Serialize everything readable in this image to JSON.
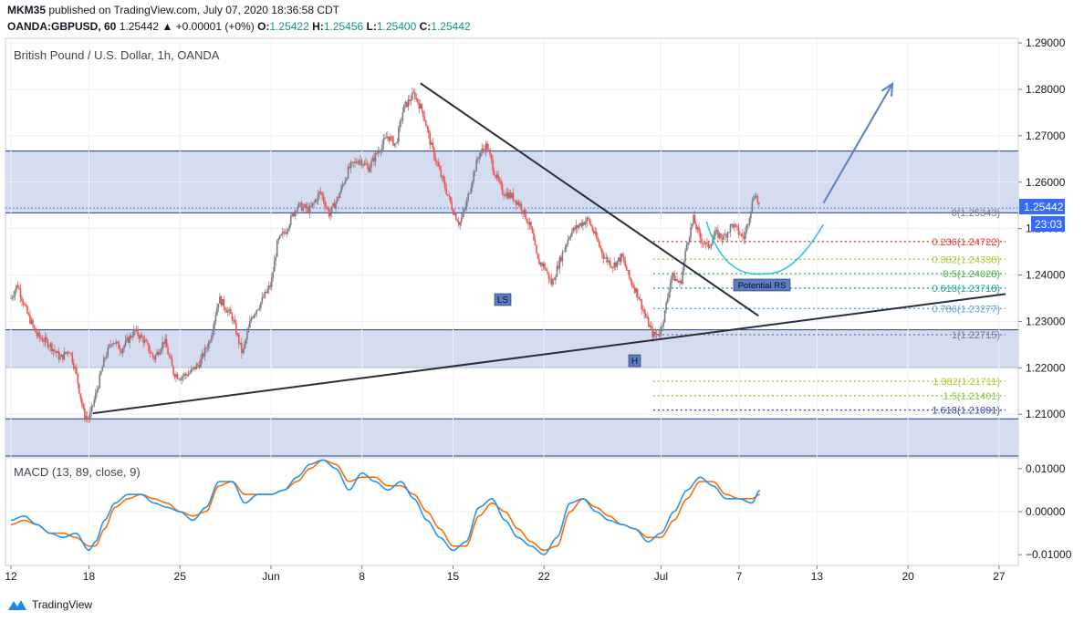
{
  "header": {
    "line1_user": "MKM35",
    "line1_rest": "published on TradingView.com, July 07, 2020 18:36:58 CDT",
    "symbol": "OANDA:GBPUSD, 60",
    "last": "1.25442",
    "change": "▲ +0.00001 (+0%)",
    "o_label": "O:",
    "o": "1.25422",
    "h_label": "H:",
    "h": "1.25456",
    "l_label": "L:",
    "l": "1.25400",
    "c_label": "C:",
    "c": "1.25442"
  },
  "colors": {
    "zone_fill": "#d3ddef",
    "zone_line": "#1d3c8c",
    "candle_up": "#787b86",
    "candle_down": "#ef5350",
    "macd_line": "#2196f3",
    "signal_line": "#ff6d00",
    "trendline": "#2a2e39",
    "arrow": "#5b7fc7",
    "cup": "#26c6da"
  },
  "chart_data": {
    "type": "candlestick",
    "title": "British Pound / U.S. Dollar, 1h, OANDA",
    "price_axis": {
      "ylim": [
        1.201,
        1.291
      ],
      "ticks": [
        "1.29000",
        "1.28000",
        "1.27000",
        "1.26000",
        "1.25000",
        "1.24000",
        "1.23000",
        "1.22000",
        "1.21000"
      ],
      "tick_values": [
        1.29,
        1.28,
        1.27,
        1.26,
        1.25,
        1.24,
        1.23,
        1.22,
        1.21
      ]
    },
    "time_axis": {
      "labels": [
        "12",
        "18",
        "25",
        "Jun",
        "8",
        "15",
        "22",
        "Jul",
        "7",
        "13",
        "20",
        "27"
      ],
      "day_index": [
        0,
        6,
        13,
        20,
        27,
        34,
        41,
        50,
        56,
        62,
        69,
        76
      ],
      "day_range": [
        0,
        76.5
      ]
    },
    "last_price_label": "1.25442",
    "countdown_label": "23:03",
    "support_resistance_zones": [
      {
        "from": 1.2534,
        "to": 1.2667
      },
      {
        "from": 1.22,
        "to": 1.2282
      },
      {
        "from": 1.201,
        "to": 1.209
      }
    ],
    "fibonacci": {
      "day_from": 49.4,
      "day_to": 76.5,
      "levels": [
        {
          "label": "0(1.25343)",
          "value": 1.25343,
          "color": "#787b86"
        },
        {
          "label": "0.236(1.24722)",
          "value": 1.24722,
          "color": "#e53935"
        },
        {
          "label": "0.382(1.24338)",
          "value": 1.24338,
          "color": "#b5c43a"
        },
        {
          "label": "0.5(1.24028)",
          "value": 1.24028,
          "color": "#4caf50"
        },
        {
          "label": "0.618(1.23718)",
          "value": 1.23718,
          "color": "#26a69a"
        },
        {
          "label": "0.786(1.23277)",
          "value": 1.23277,
          "color": "#5c9fd6"
        },
        {
          "label": "1(1.22715)",
          "value": 1.22715,
          "color": "#787b86"
        },
        {
          "label": "1.382(1.21711)",
          "value": 1.21711,
          "color": "#b5c43a"
        },
        {
          "label": "1.5(1.21401)",
          "value": 1.21401,
          "color": "#8bc34a"
        },
        {
          "label": "1.618(1.21091)",
          "value": 1.21091,
          "color": "#3949ab"
        }
      ]
    },
    "price_path": [
      [
        0,
        1.235
      ],
      [
        0.5,
        1.238
      ],
      [
        1.2,
        1.232
      ],
      [
        2,
        1.227
      ],
      [
        3,
        1.225
      ],
      [
        3.8,
        1.222
      ],
      [
        4.5,
        1.224
      ],
      [
        5,
        1.219
      ],
      [
        5.6,
        1.21
      ],
      [
        6,
        1.209
      ],
      [
        6.5,
        1.214
      ],
      [
        7.2,
        1.222
      ],
      [
        7.8,
        1.226
      ],
      [
        8.5,
        1.224
      ],
      [
        9.5,
        1.228
      ],
      [
        10.2,
        1.226
      ],
      [
        11,
        1.222
      ],
      [
        11.8,
        1.226
      ],
      [
        12.5,
        1.219
      ],
      [
        13,
        1.218
      ],
      [
        13.8,
        1.219
      ],
      [
        14.5,
        1.221
      ],
      [
        15.3,
        1.226
      ],
      [
        16,
        1.235
      ],
      [
        17,
        1.231
      ],
      [
        17.8,
        1.223
      ],
      [
        18.5,
        1.231
      ],
      [
        19.2,
        1.234
      ],
      [
        20,
        1.238
      ],
      [
        20.5,
        1.247
      ],
      [
        21.2,
        1.25
      ],
      [
        22,
        1.255
      ],
      [
        23,
        1.254
      ],
      [
        23.8,
        1.258
      ],
      [
        24.5,
        1.253
      ],
      [
        25.2,
        1.257
      ],
      [
        26,
        1.263
      ],
      [
        26.8,
        1.265
      ],
      [
        27.5,
        1.263
      ],
      [
        28.3,
        1.267
      ],
      [
        29,
        1.27
      ],
      [
        29.6,
        1.268
      ],
      [
        30.2,
        1.276
      ],
      [
        31,
        1.279
      ],
      [
        31.7,
        1.275
      ],
      [
        32.3,
        1.268
      ],
      [
        33,
        1.262
      ],
      [
        33.5,
        1.258
      ],
      [
        34,
        1.254
      ],
      [
        34.5,
        1.251
      ],
      [
        35,
        1.255
      ],
      [
        35.5,
        1.261
      ],
      [
        36,
        1.266
      ],
      [
        36.6,
        1.268
      ],
      [
        37.2,
        1.262
      ],
      [
        37.8,
        1.258
      ],
      [
        38.5,
        1.257
      ],
      [
        39.2,
        1.255
      ],
      [
        40,
        1.25
      ],
      [
        40.5,
        1.243
      ],
      [
        41,
        1.242
      ],
      [
        41.6,
        1.238
      ],
      [
        42.2,
        1.243
      ],
      [
        43,
        1.249
      ],
      [
        43.8,
        1.251
      ],
      [
        44.4,
        1.252
      ],
      [
        45,
        1.248
      ],
      [
        45.6,
        1.244
      ],
      [
        46.3,
        1.242
      ],
      [
        47,
        1.244
      ],
      [
        47.6,
        1.239
      ],
      [
        48.2,
        1.236
      ],
      [
        48.8,
        1.231
      ],
      [
        49.4,
        1.227
      ],
      [
        49.9,
        1.2275
      ],
      [
        50.3,
        1.232
      ],
      [
        50.8,
        1.24
      ],
      [
        51.5,
        1.238
      ],
      [
        52,
        1.247
      ],
      [
        52.5,
        1.252
      ],
      [
        53,
        1.248
      ],
      [
        53.6,
        1.246
      ],
      [
        54.2,
        1.249
      ],
      [
        54.8,
        1.248
      ],
      [
        55.5,
        1.251
      ],
      [
        56,
        1.249
      ],
      [
        56.4,
        1.248
      ],
      [
        56.8,
        1.253
      ],
      [
        57.2,
        1.258
      ],
      [
        57.6,
        1.2544
      ]
    ],
    "trendlines": [
      {
        "from": [
          31.5,
          1.2813
        ],
        "to": [
          57.5,
          1.2312
        ]
      },
      {
        "from": [
          6.3,
          1.2102
        ],
        "to": [
          76.5,
          1.2359
        ]
      }
    ],
    "projection_arrow": {
      "from": [
        62.5,
        1.2555
      ],
      "to": [
        67.8,
        1.2812
      ]
    },
    "cup": {
      "from": [
        53.5,
        1.2515
      ],
      "bottom": [
        58.2,
        1.2403
      ],
      "to": [
        62.5,
        1.2509
      ]
    },
    "annotations": {
      "ls": "LS",
      "h": "H",
      "potential_rs": "Potential RS"
    }
  },
  "macd": {
    "label": "MACD (13, 89, close, 9)",
    "ylim": [
      -0.0125,
      0.0125
    ],
    "ticks": [
      "0.01000",
      "0.00000",
      "−0.01000"
    ],
    "tick_values": [
      0.01,
      0.0,
      -0.01
    ],
    "macd_path": [
      [
        0,
        -0.002
      ],
      [
        1,
        -0.001
      ],
      [
        2,
        -0.003
      ],
      [
        3,
        -0.005
      ],
      [
        4,
        -0.006
      ],
      [
        5,
        -0.005
      ],
      [
        6,
        -0.009
      ],
      [
        6.5,
        -0.007
      ],
      [
        7.2,
        -0.002
      ],
      [
        8,
        0.002
      ],
      [
        9,
        0.004
      ],
      [
        10,
        0.004
      ],
      [
        11,
        0.002
      ],
      [
        12,
        0.001
      ],
      [
        13,
        0.0
      ],
      [
        14,
        -0.002
      ],
      [
        15,
        0.001
      ],
      [
        16,
        0.007
      ],
      [
        17,
        0.007
      ],
      [
        18,
        0.002
      ],
      [
        19,
        0.004
      ],
      [
        20,
        0.004
      ],
      [
        21,
        0.005
      ],
      [
        22,
        0.008
      ],
      [
        23,
        0.011
      ],
      [
        24,
        0.012
      ],
      [
        25,
        0.01
      ],
      [
        26,
        0.005
      ],
      [
        27,
        0.009
      ],
      [
        28,
        0.007
      ],
      [
        29,
        0.005
      ],
      [
        30,
        0.007
      ],
      [
        31,
        0.003
      ],
      [
        32,
        -0.002
      ],
      [
        33,
        -0.006
      ],
      [
        34,
        -0.009
      ],
      [
        35,
        -0.007
      ],
      [
        36,
        0.001
      ],
      [
        37,
        0.003
      ],
      [
        38,
        -0.002
      ],
      [
        39,
        -0.006
      ],
      [
        40,
        -0.008
      ],
      [
        41,
        -0.01
      ],
      [
        42,
        -0.006
      ],
      [
        43,
        0.002
      ],
      [
        44,
        0.003
      ],
      [
        45,
        0.0
      ],
      [
        46,
        -0.002
      ],
      [
        47,
        -0.003
      ],
      [
        48,
        -0.004
      ],
      [
        49,
        -0.007
      ],
      [
        50,
        -0.005
      ],
      [
        51,
        0.0
      ],
      [
        52,
        0.005
      ],
      [
        53,
        0.008
      ],
      [
        54,
        0.006
      ],
      [
        55,
        0.003
      ],
      [
        56,
        0.003
      ],
      [
        57,
        0.002
      ],
      [
        57.6,
        0.005
      ]
    ],
    "signal_path": [
      [
        0,
        -0.003
      ],
      [
        1,
        -0.002
      ],
      [
        2,
        -0.003
      ],
      [
        3,
        -0.005
      ],
      [
        4,
        -0.005
      ],
      [
        5,
        -0.006
      ],
      [
        6,
        -0.008
      ],
      [
        6.5,
        -0.008
      ],
      [
        7.2,
        -0.004
      ],
      [
        8,
        0.001
      ],
      [
        9,
        0.003
      ],
      [
        10,
        0.004
      ],
      [
        11,
        0.003
      ],
      [
        12,
        0.002
      ],
      [
        13,
        0.0
      ],
      [
        14,
        -0.001
      ],
      [
        15,
        0.0
      ],
      [
        16,
        0.006
      ],
      [
        17,
        0.007
      ],
      [
        18,
        0.004
      ],
      [
        19,
        0.004
      ],
      [
        20,
        0.004
      ],
      [
        21,
        0.005
      ],
      [
        22,
        0.007
      ],
      [
        23,
        0.01
      ],
      [
        24,
        0.012
      ],
      [
        25,
        0.011
      ],
      [
        26,
        0.007
      ],
      [
        27,
        0.008
      ],
      [
        28,
        0.008
      ],
      [
        29,
        0.006
      ],
      [
        30,
        0.006
      ],
      [
        31,
        0.004
      ],
      [
        32,
        0.0
      ],
      [
        33,
        -0.004
      ],
      [
        34,
        -0.008
      ],
      [
        35,
        -0.008
      ],
      [
        36,
        -0.001
      ],
      [
        37,
        0.002
      ],
      [
        38,
        0.0
      ],
      [
        39,
        -0.004
      ],
      [
        40,
        -0.007
      ],
      [
        41,
        -0.009
      ],
      [
        42,
        -0.008
      ],
      [
        43,
        0.0
      ],
      [
        44,
        0.003
      ],
      [
        45,
        0.001
      ],
      [
        46,
        -0.001
      ],
      [
        47,
        -0.003
      ],
      [
        48,
        -0.004
      ],
      [
        49,
        -0.006
      ],
      [
        50,
        -0.006
      ],
      [
        51,
        -0.002
      ],
      [
        52,
        0.003
      ],
      [
        53,
        0.007
      ],
      [
        54,
        0.007
      ],
      [
        55,
        0.004
      ],
      [
        56,
        0.003
      ],
      [
        57,
        0.003
      ],
      [
        57.6,
        0.004
      ]
    ]
  },
  "footer": {
    "brand": "TradingView"
  }
}
